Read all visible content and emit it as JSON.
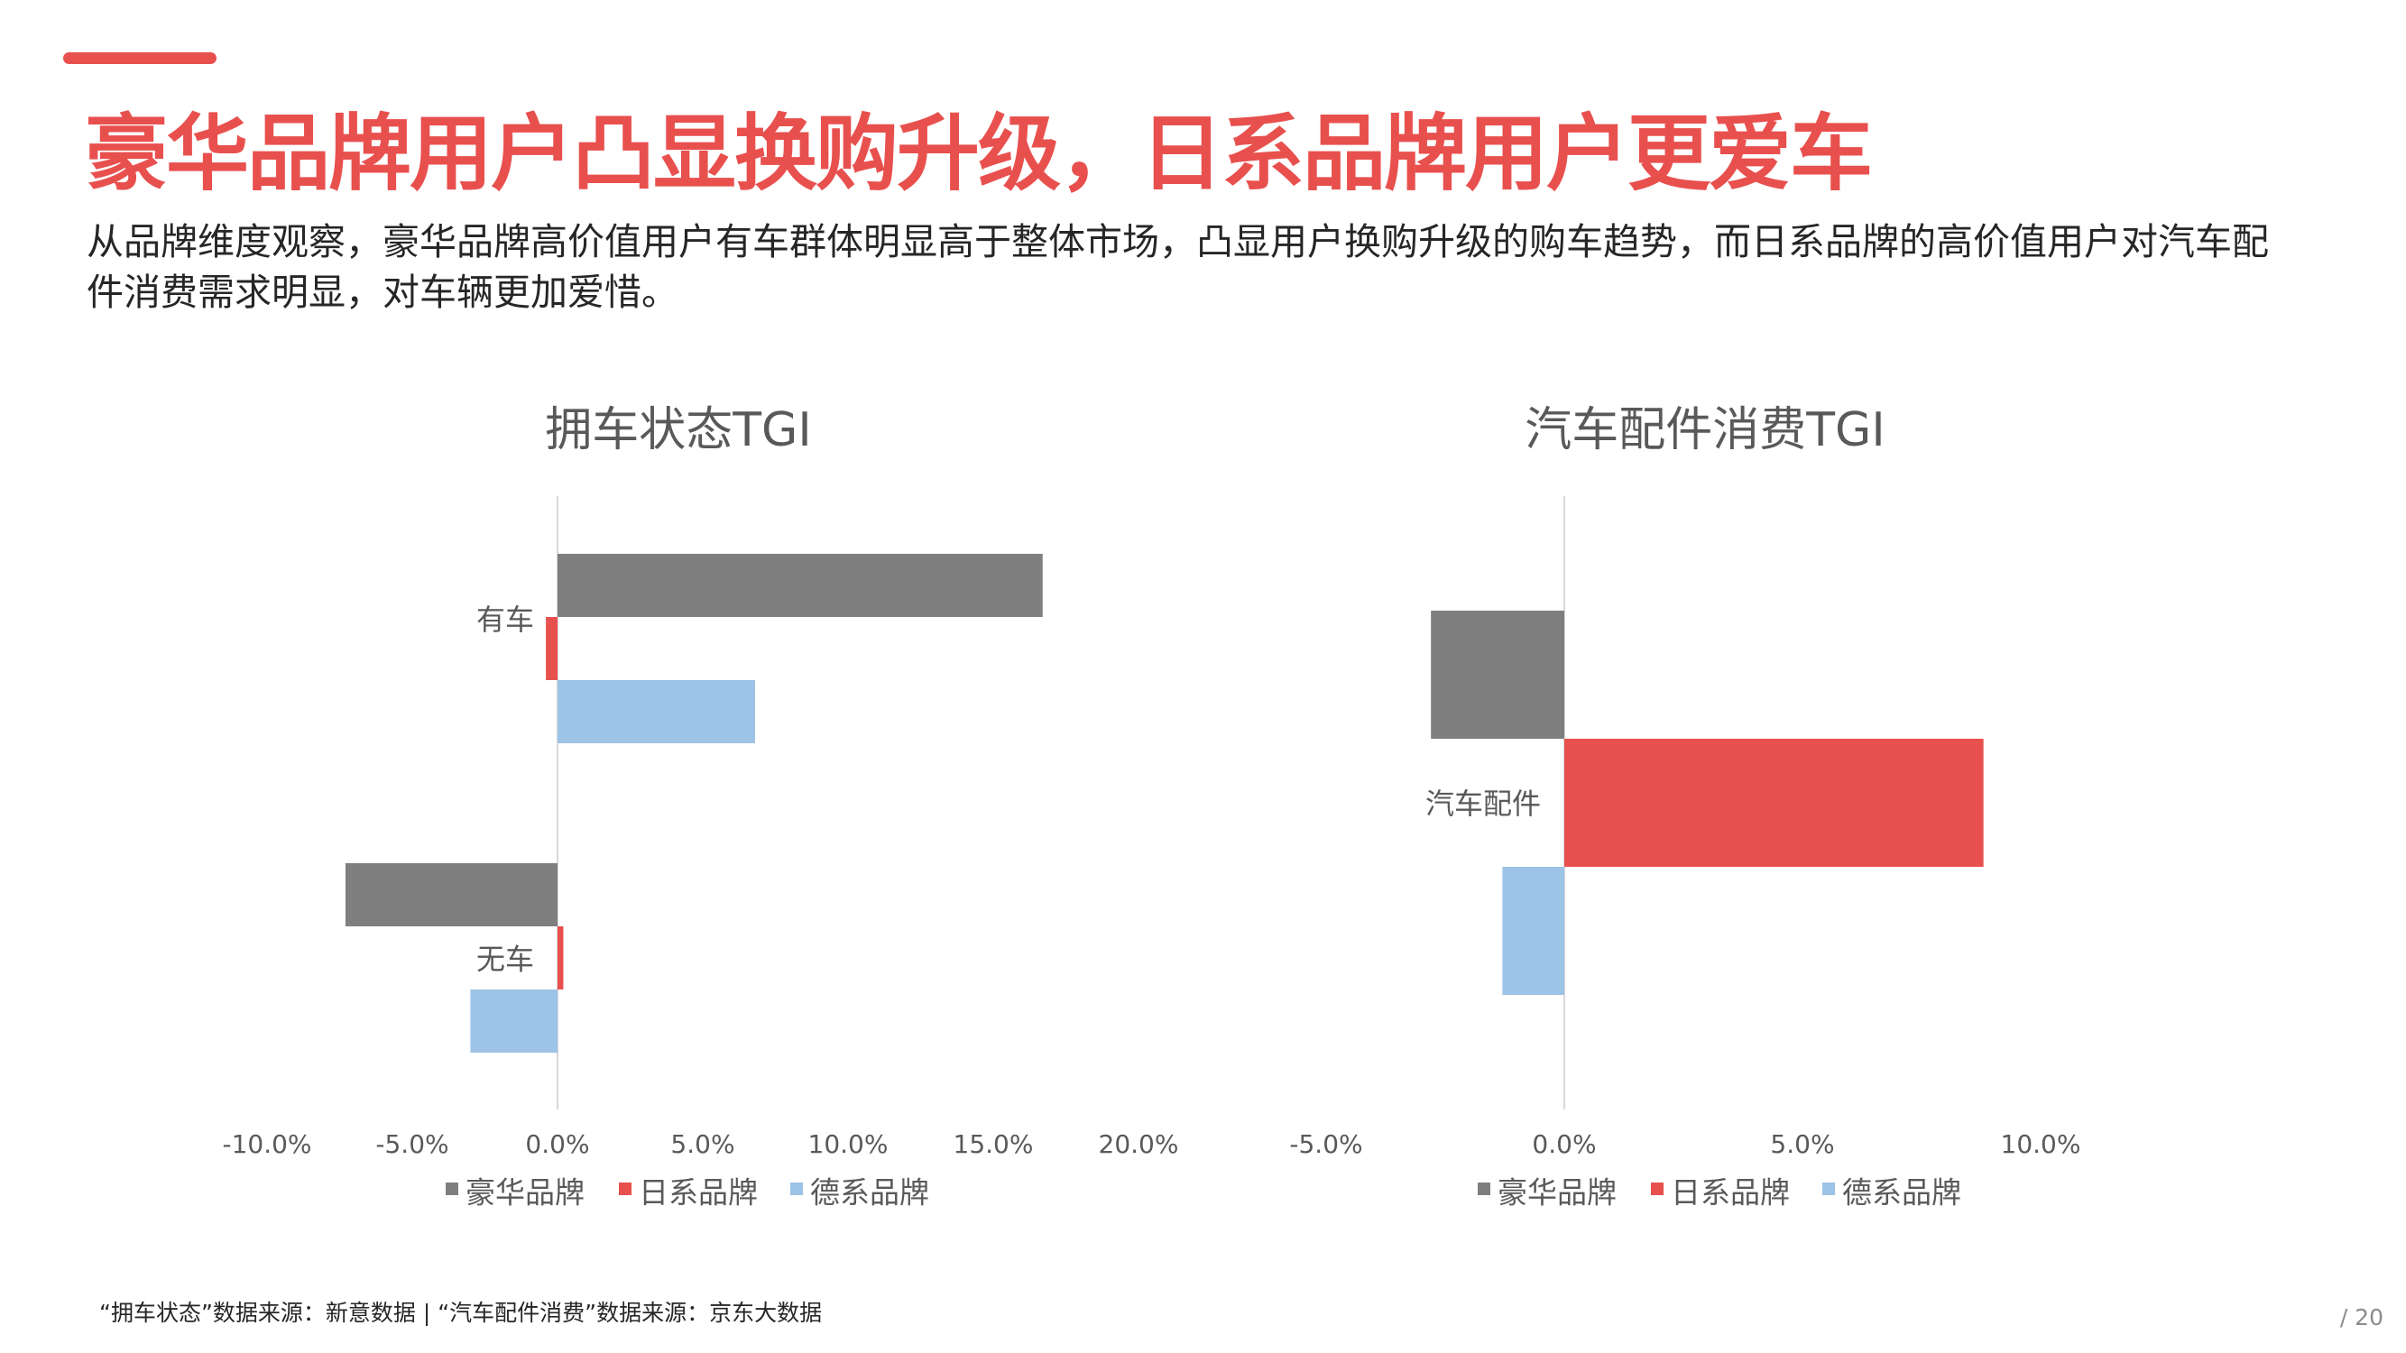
{
  "title": "豪华品牌用户凸显换购升级，日系品牌用户更爱车",
  "subtitle": "从品牌维度观察，豪华品牌高价值用户有车群体明显高于整体市场，凸显用户换购升级的购车趋势，而日系品牌的高价值用户对汽车配件消费需求明显，对车辆更加爱惜。",
  "colors": {
    "accent": "#E8504E",
    "luxury": "#7F7F7F",
    "japanese": "#E8504E",
    "german": "#9DC3E6"
  },
  "chart_data": [
    {
      "type": "bar",
      "orientation": "horizontal",
      "title": "拥车状态TGI",
      "categories": [
        "有车",
        "无车"
      ],
      "series": [
        {
          "name": "豪华品牌",
          "color": "#7F7F7F",
          "values": [
            16.7,
            -7.3
          ]
        },
        {
          "name": "日系品牌",
          "color": "#E8504E",
          "values": [
            -0.4,
            0.2
          ]
        },
        {
          "name": "德系品牌",
          "color": "#9DC3E6",
          "values": [
            6.8,
            -3.0
          ]
        }
      ],
      "xlim": [
        -10,
        20
      ],
      "xticks": [
        -10,
        -5,
        0,
        5,
        10,
        15,
        20
      ],
      "tick_labels": [
        "-10.0%",
        "-5.0%",
        "0.0%",
        "5.0%",
        "10.0%",
        "15.0%",
        "20.0%"
      ],
      "legend": "bottom",
      "grid": false
    },
    {
      "type": "bar",
      "orientation": "horizontal",
      "title": "汽车配件消费TGI",
      "categories": [
        "汽车配件"
      ],
      "series": [
        {
          "name": "豪华品牌",
          "color": "#7F7F7F",
          "values": [
            -2.8
          ]
        },
        {
          "name": "日系品牌",
          "color": "#E8504E",
          "values": [
            8.8
          ]
        },
        {
          "name": "德系品牌",
          "color": "#9DC3E6",
          "values": [
            -1.3
          ]
        }
      ],
      "xlim": [
        -5,
        10
      ],
      "xticks": [
        -5,
        0,
        5,
        10
      ],
      "tick_labels": [
        "-5.0%",
        "0.0%",
        "5.0%",
        "10.0%"
      ],
      "legend": "bottom",
      "grid": false
    }
  ],
  "footer": {
    "source": "“拥车状态”数据来源：新意数据  |  “汽车配件消费”数据来源：京东大数据",
    "page": "/ 20"
  }
}
